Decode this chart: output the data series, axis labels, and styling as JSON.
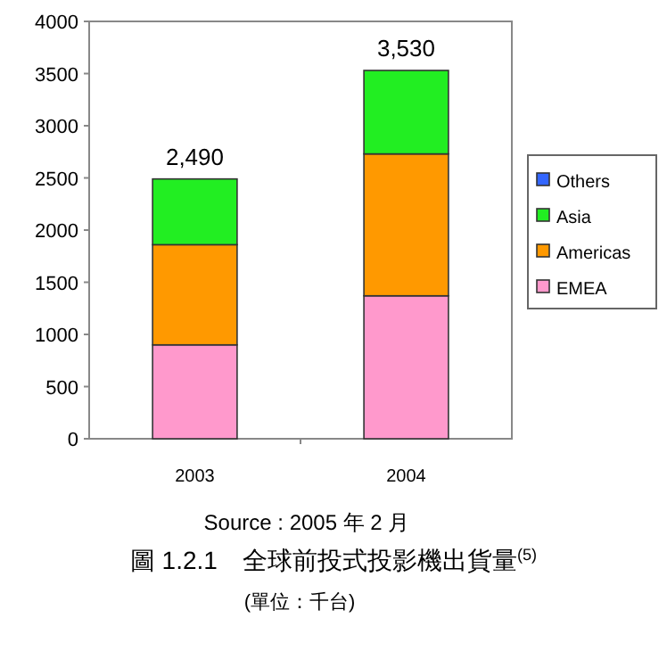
{
  "chart_data": {
    "type": "bar",
    "stacked": true,
    "title": "圖 1.2.1　全球前投式投影機出貨量$^{(5)}$",
    "subtitle": "(單位：千台)",
    "annotations": [
      "Source : 2005 年 2 月"
    ],
    "categories": [
      "2003",
      "2004"
    ],
    "series": [
      {
        "name": "EMEA",
        "color": "#ff99cc",
        "values": [
          900,
          1370
        ]
      },
      {
        "name": "Americas",
        "color": "#ff9900",
        "values": [
          960,
          1360
        ]
      },
      {
        "name": "Asia",
        "color": "#22ee22",
        "values": [
          630,
          800
        ]
      },
      {
        "name": "Others",
        "color": "#3366ff",
        "values": [
          null,
          null
        ]
      }
    ],
    "totals": [
      "2,490",
      "3,530"
    ],
    "ylim": [
      0,
      4000
    ],
    "yticks": [
      0,
      500,
      1000,
      1500,
      2000,
      2500,
      3000,
      3500,
      4000
    ],
    "legend": "right"
  }
}
